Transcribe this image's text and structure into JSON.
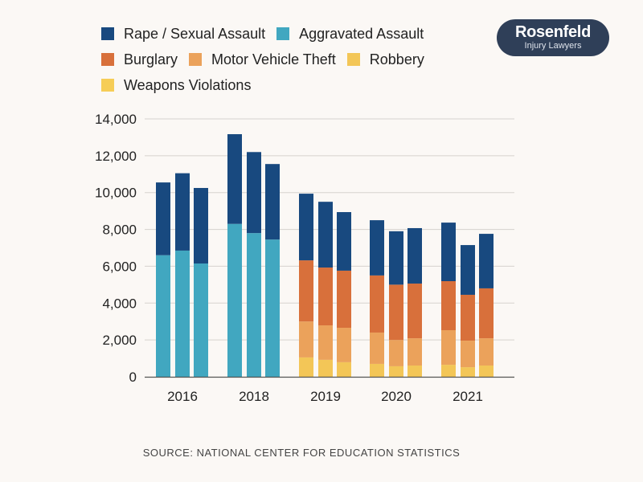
{
  "logo": {
    "line1": "Rosenfeld",
    "line2": "Injury Lawyers"
  },
  "source": "SOURCE: NATIONAL CENTER FOR EDUCATION STATISTICS",
  "chart_data": {
    "type": "bar",
    "stacked": true,
    "title": "",
    "xlabel": "",
    "ylabel": "",
    "ylim": [
      0,
      14000
    ],
    "yticks": [
      "0",
      "2,000",
      "4,000",
      "6,000",
      "8,000",
      "10,000",
      "12,000",
      "14,000"
    ],
    "ytick_values": [
      0,
      2000,
      4000,
      6000,
      8000,
      10000,
      12000,
      14000
    ],
    "grid": true,
    "legend": "top-left",
    "categories": [
      "2016",
      "2018",
      "2019",
      "2020",
      "2021"
    ],
    "bars_per_category": 3,
    "series": [
      {
        "name": "Robbery",
        "color": "#f3c657",
        "values": [
          [
            0,
            0,
            0
          ],
          [
            0,
            0,
            0
          ],
          [
            1050,
            920,
            790
          ],
          [
            700,
            570,
            610
          ],
          [
            650,
            520,
            610
          ]
        ]
      },
      {
        "name": "Motor Vehicle Theft",
        "color": "#eba25b",
        "values": [
          [
            0,
            0,
            0
          ],
          [
            0,
            0,
            0
          ],
          [
            1950,
            1870,
            1870
          ],
          [
            1700,
            1430,
            1480
          ],
          [
            1880,
            1440,
            1480
          ]
        ]
      },
      {
        "name": "Burglary",
        "color": "#d8703b",
        "values": [
          [
            0,
            0,
            0
          ],
          [
            0,
            0,
            0
          ],
          [
            3320,
            3140,
            3100
          ],
          [
            3100,
            3000,
            2970
          ],
          [
            2660,
            2490,
            2710
          ]
        ]
      },
      {
        "name": "Aggravated Assault",
        "color": "#41a7c0",
        "values": [
          [
            6600,
            6850,
            6150
          ],
          [
            8300,
            7800,
            7450
          ],
          [
            0,
            0,
            0
          ],
          [
            0,
            0,
            0
          ],
          [
            0,
            0,
            0
          ]
        ]
      },
      {
        "name": "Rape / Sexual Assault",
        "color": "#18497f",
        "values": [
          [
            3950,
            4200,
            4100
          ],
          [
            4870,
            4400,
            4100
          ],
          [
            3620,
            3570,
            3180
          ],
          [
            3000,
            2900,
            3010
          ],
          [
            3180,
            2700,
            2960
          ]
        ]
      },
      {
        "name": "Weapons Violations",
        "color": "#f6cd57",
        "values": null
      }
    ],
    "legend_order": [
      "Rape / Sexual Assault",
      "Aggravated Assault",
      "Burglary",
      "Motor Vehicle Theft",
      "Robbery",
      "Weapons Violations"
    ]
  }
}
